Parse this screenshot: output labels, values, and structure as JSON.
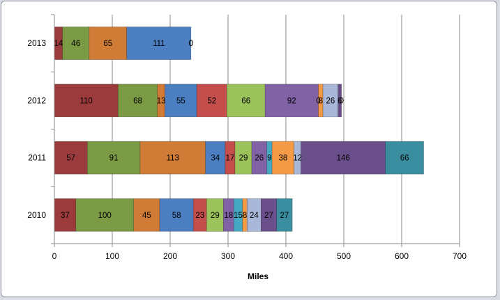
{
  "chart_data": {
    "type": "bar",
    "orientation": "horizontal",
    "stacked": true,
    "title": "",
    "xlabel": "Miles",
    "ylabel": "",
    "xlim": [
      0,
      700
    ],
    "x_ticks": [
      0,
      100,
      200,
      300,
      400,
      500,
      600,
      700
    ],
    "grid": true,
    "legend": "none",
    "categories": [
      "2013",
      "2012",
      "2011",
      "2010"
    ],
    "series": [
      {
        "color": "#9b3b3b",
        "values": [
          14,
          110,
          57,
          37
        ]
      },
      {
        "color": "#7a9a43",
        "values": [
          46,
          68,
          91,
          100
        ]
      },
      {
        "color": "#d07b36",
        "values": [
          65,
          13,
          113,
          45
        ]
      },
      {
        "color": "#4b7fc1",
        "values": [
          111,
          55,
          34,
          58
        ]
      },
      {
        "color": "#c34e4b",
        "values": [
          0,
          52,
          17,
          23
        ]
      },
      {
        "color": "#9cc35b",
        "values": [
          0,
          66,
          29,
          29
        ]
      },
      {
        "color": "#8062a5",
        "values": [
          0,
          92,
          26,
          18
        ]
      },
      {
        "color": "#46a9c4",
        "values": [
          0,
          0,
          9,
          15
        ]
      },
      {
        "color": "#f59a47",
        "values": [
          0,
          8,
          38,
          8
        ]
      },
      {
        "color": "#a9b8d9",
        "values": [
          0,
          26,
          12,
          24
        ]
      },
      {
        "color": "#6b4f8b",
        "values": [
          0,
          6,
          146,
          27
        ]
      },
      {
        "color": "#3a8ea0",
        "values": [
          0,
          0,
          66,
          27
        ]
      }
    ]
  }
}
